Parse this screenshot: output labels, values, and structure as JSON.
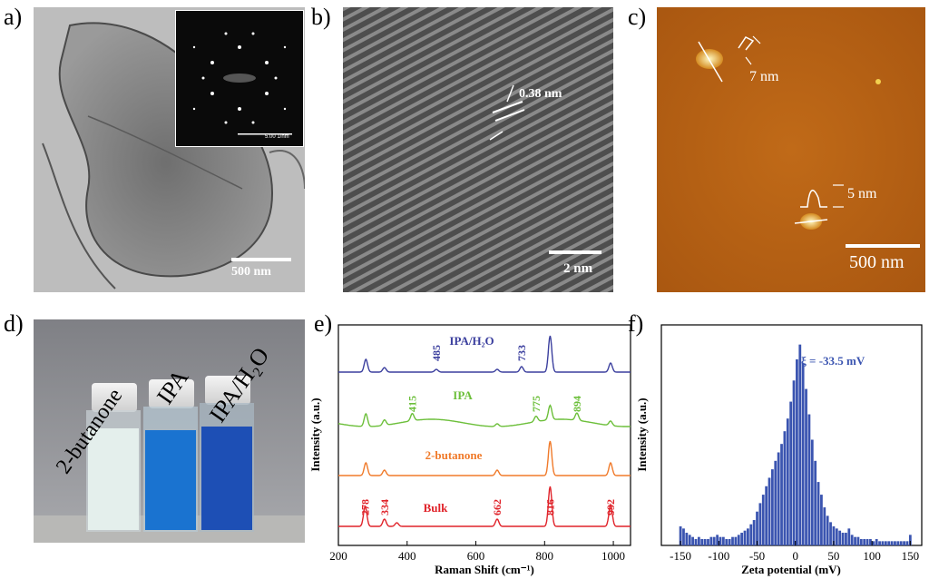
{
  "labels": {
    "a": "a)",
    "b": "b)",
    "c": "c)",
    "d": "d)",
    "e": "e)",
    "f": "f)"
  },
  "panel_a": {
    "scalebar": "500 nm",
    "inset_scale": "5.00 1/nm"
  },
  "panel_b": {
    "spacing": "0.38 nm",
    "scalebar": "2 nm"
  },
  "panel_c": {
    "height1": "7 nm",
    "height2": "5 nm",
    "scalebar": "500 nm"
  },
  "panel_d": {
    "vials": [
      "2-butanone",
      "IPA",
      "IPA/H₂O"
    ]
  },
  "colors": {
    "ipa_h2o": "#3b3f9e",
    "ipa": "#6cbf3a",
    "butanone": "#f07a2a",
    "bulk": "#e0232a",
    "zeta": "#3a54b0"
  },
  "chart_data": [
    {
      "type": "line",
      "panel": "e",
      "xlabel": "Raman Shift (cm⁻¹)",
      "ylabel": "Intensity (a.u.)",
      "xlim": [
        200,
        1050
      ],
      "xticks": [
        200,
        400,
        600,
        800,
        1000
      ],
      "series": [
        {
          "name": "IPA/H₂O",
          "peaks": [
            {
              "x": 485,
              "label": "485"
            },
            {
              "x": 733,
              "label": "733"
            }
          ]
        },
        {
          "name": "IPA",
          "peaks": [
            {
              "x": 415,
              "label": "415"
            },
            {
              "x": 775,
              "label": "775"
            },
            {
              "x": 894,
              "label": "894"
            }
          ]
        },
        {
          "name": "2-butanone",
          "peaks": []
        },
        {
          "name": "Bulk",
          "peaks": [
            {
              "x": 278,
              "label": "278"
            },
            {
              "x": 334,
              "label": "334"
            },
            {
              "x": 662,
              "label": "662"
            },
            {
              "x": 816,
              "label": "816"
            },
            {
              "x": 992,
              "label": "992"
            }
          ]
        }
      ]
    },
    {
      "type": "bar",
      "panel": "f",
      "xlabel": "Zeta potential (mV)",
      "ylabel": "Intensity (a.u.)",
      "xlim": [
        -175,
        165
      ],
      "xticks": [
        -150,
        -100,
        -50,
        0,
        50,
        100,
        150
      ],
      "annotation": "ξ = -33.5 mV",
      "bin_width": 4,
      "x": [
        -150,
        -146,
        -142,
        -138,
        -134,
        -130,
        -126,
        -122,
        -118,
        -114,
        -110,
        -106,
        -102,
        -98,
        -94,
        -90,
        -86,
        -82,
        -78,
        -74,
        -70,
        -66,
        -62,
        -58,
        -54,
        -50,
        -46,
        -42,
        -38,
        -34,
        -30,
        -26,
        -22,
        -18,
        -14,
        -10,
        -6,
        -2,
        2,
        6,
        10,
        14,
        18,
        22,
        26,
        30,
        34,
        38,
        42,
        46,
        50,
        54,
        58,
        62,
        66,
        70,
        74,
        78,
        82,
        86,
        90,
        94,
        98,
        102,
        106,
        110,
        114,
        118,
        122,
        126,
        130,
        134,
        138,
        142,
        146,
        150
      ],
      "values": [
        0.09,
        0.08,
        0.06,
        0.05,
        0.04,
        0.03,
        0.04,
        0.03,
        0.03,
        0.03,
        0.04,
        0.04,
        0.05,
        0.04,
        0.04,
        0.03,
        0.03,
        0.04,
        0.04,
        0.05,
        0.06,
        0.07,
        0.08,
        0.1,
        0.12,
        0.16,
        0.2,
        0.24,
        0.28,
        0.32,
        0.36,
        0.4,
        0.44,
        0.48,
        0.54,
        0.6,
        0.68,
        0.78,
        0.88,
        0.95,
        0.86,
        0.74,
        0.62,
        0.5,
        0.4,
        0.3,
        0.24,
        0.18,
        0.14,
        0.11,
        0.09,
        0.08,
        0.07,
        0.06,
        0.06,
        0.08,
        0.05,
        0.04,
        0.04,
        0.03,
        0.03,
        0.03,
        0.03,
        0.02,
        0.03,
        0.02,
        0.02,
        0.02,
        0.02,
        0.02,
        0.02,
        0.02,
        0.02,
        0.02,
        0.02,
        0.05
      ]
    }
  ]
}
